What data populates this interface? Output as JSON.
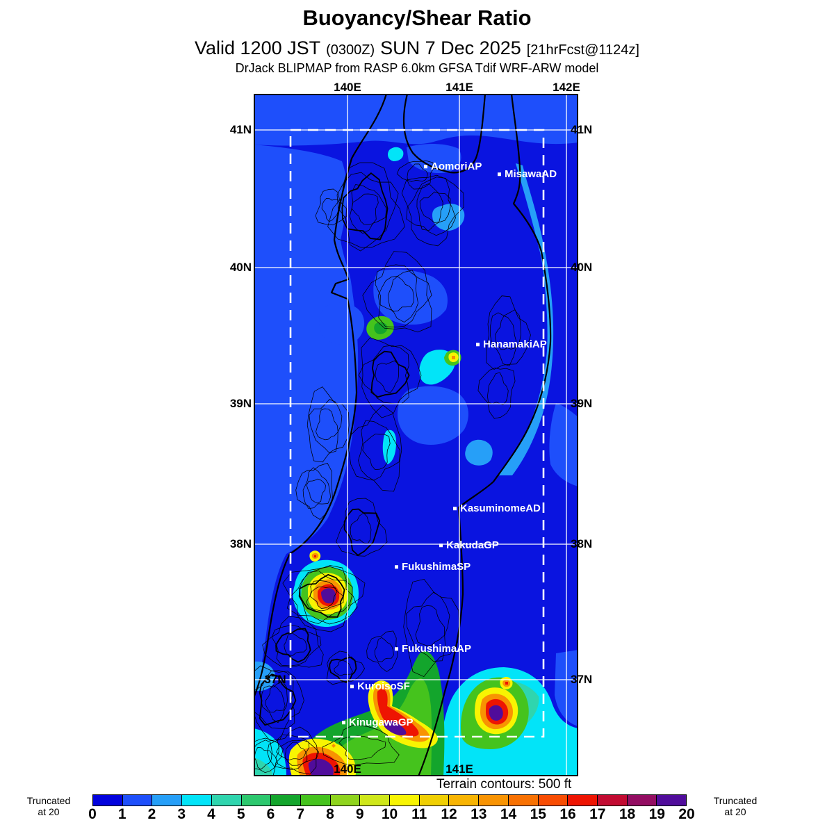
{
  "header": {
    "title": "Buoyancy/Shear Ratio",
    "valid_prefix": "Valid 1200 JST",
    "valid_zulu": "(0300Z)",
    "valid_date": "SUN 7 Dec 2025",
    "valid_fcst": "[21hrFcst@1124z]",
    "model_line": "DrJack BLIPMAP from RASP 6.0km GFSA Tdif WRF-ARW model"
  },
  "map": {
    "axis": {
      "top": [
        "140E",
        "141E",
        "142E"
      ],
      "bottom_inner": [
        "140E",
        "141E"
      ],
      "left": [
        "41N",
        "40N",
        "39N",
        "38N"
      ],
      "inner_left": "37N",
      "right": [
        "41N",
        "40N",
        "39N",
        "38N",
        "37N"
      ]
    },
    "stations": [
      {
        "name": "AomoriAP"
      },
      {
        "name": "MisawaAD"
      },
      {
        "name": "HanamakiAP"
      },
      {
        "name": "KasuminomeAD"
      },
      {
        "name": "KakudaGP"
      },
      {
        "name": "FukushimaSP"
      },
      {
        "name": "FukushimaAP"
      },
      {
        "name": "KuroisoSF"
      },
      {
        "name": "KinugawaGP"
      }
    ],
    "grid_color": "#ffffff",
    "coast_color": "#000000",
    "domain_box_color": "#ffffff"
  },
  "footer": {
    "terrain_note": "Terrain contours: 500 ft",
    "truncated_line1": "Truncated",
    "truncated_line2": "at 20"
  },
  "colorbar": {
    "ticks": [
      "0",
      "1",
      "2",
      "3",
      "4",
      "5",
      "6",
      "7",
      "8",
      "9",
      "10",
      "11",
      "12",
      "13",
      "14",
      "15",
      "16",
      "17",
      "18",
      "19",
      "20"
    ],
    "colors": [
      "#0202dd",
      "#1e4ffb",
      "#269ff8",
      "#02e4f8",
      "#2fd5ae",
      "#2cc86e",
      "#13a52c",
      "#45c31d",
      "#8fd41d",
      "#cfe71a",
      "#f8f402",
      "#f0cf02",
      "#f8b402",
      "#f89302",
      "#f87102",
      "#f84c02",
      "#ee1402",
      "#c20b31",
      "#930d62",
      "#500c9b"
    ]
  }
}
